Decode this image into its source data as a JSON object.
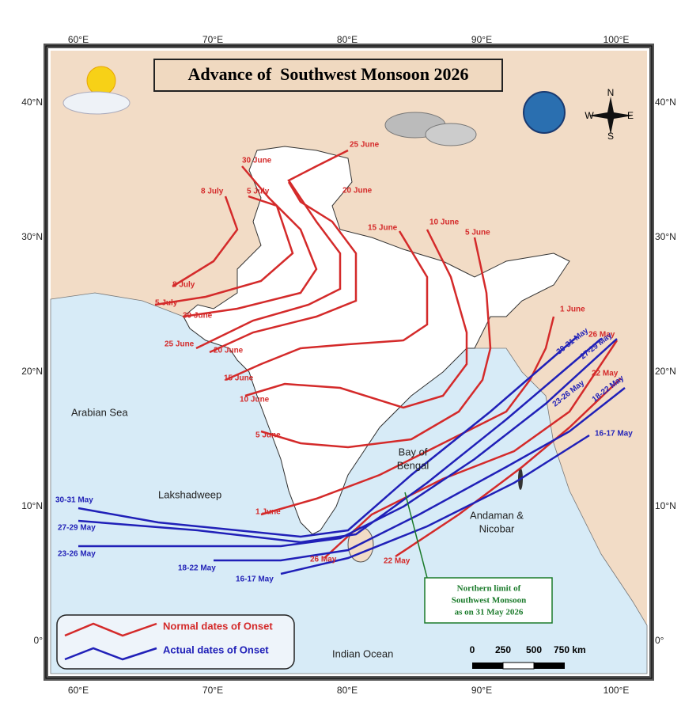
{
  "title": "Advance of  Southwest Monsoon 2026",
  "longitude_labels": [
    "60°E",
    "70°E",
    "80°E",
    "90°E",
    "100°E"
  ],
  "latitude_labels": [
    "40°N",
    "30°N",
    "20°N",
    "10°N",
    "0°"
  ],
  "places": {
    "arabian_sea": "Arabian Sea",
    "lakshadweep": "Lakshadweep",
    "bay_of_bengal": [
      "Bay of",
      "Bengal"
    ],
    "andaman_nicobar": [
      "Andaman &",
      "Nicobar"
    ],
    "indian_ocean": "Indian Ocean"
  },
  "normal_onset_labels": [
    "25 June",
    "30 June",
    "20 June",
    "8 July",
    "5 July",
    "15 June",
    "10 June",
    "5 June",
    "8 July",
    "5 July",
    "30 June",
    "1 June",
    "25 June",
    "20 June",
    "15 June",
    "10 June",
    "5 June",
    "1 June",
    "26 May",
    "22 May",
    "26 May",
    "22 May"
  ],
  "actual_onset_labels": [
    "30-31 May",
    "27-29 May",
    "23-26 May",
    "18-22 May",
    "16-17 May",
    "30-31 May",
    "27-29 May",
    "23-26 May",
    "18-22 May",
    "16-17 May"
  ],
  "annotation": [
    "Northern limit of",
    "Southwest Monsoon",
    "as on 31 May 2026"
  ],
  "legend": {
    "normal": "Normal dates of Onset",
    "actual": "Actual dates of Onset"
  },
  "scale_labels": [
    "0",
    "250",
    "500",
    "750 km"
  ],
  "compass": [
    "N",
    "E",
    "S",
    "W"
  ]
}
